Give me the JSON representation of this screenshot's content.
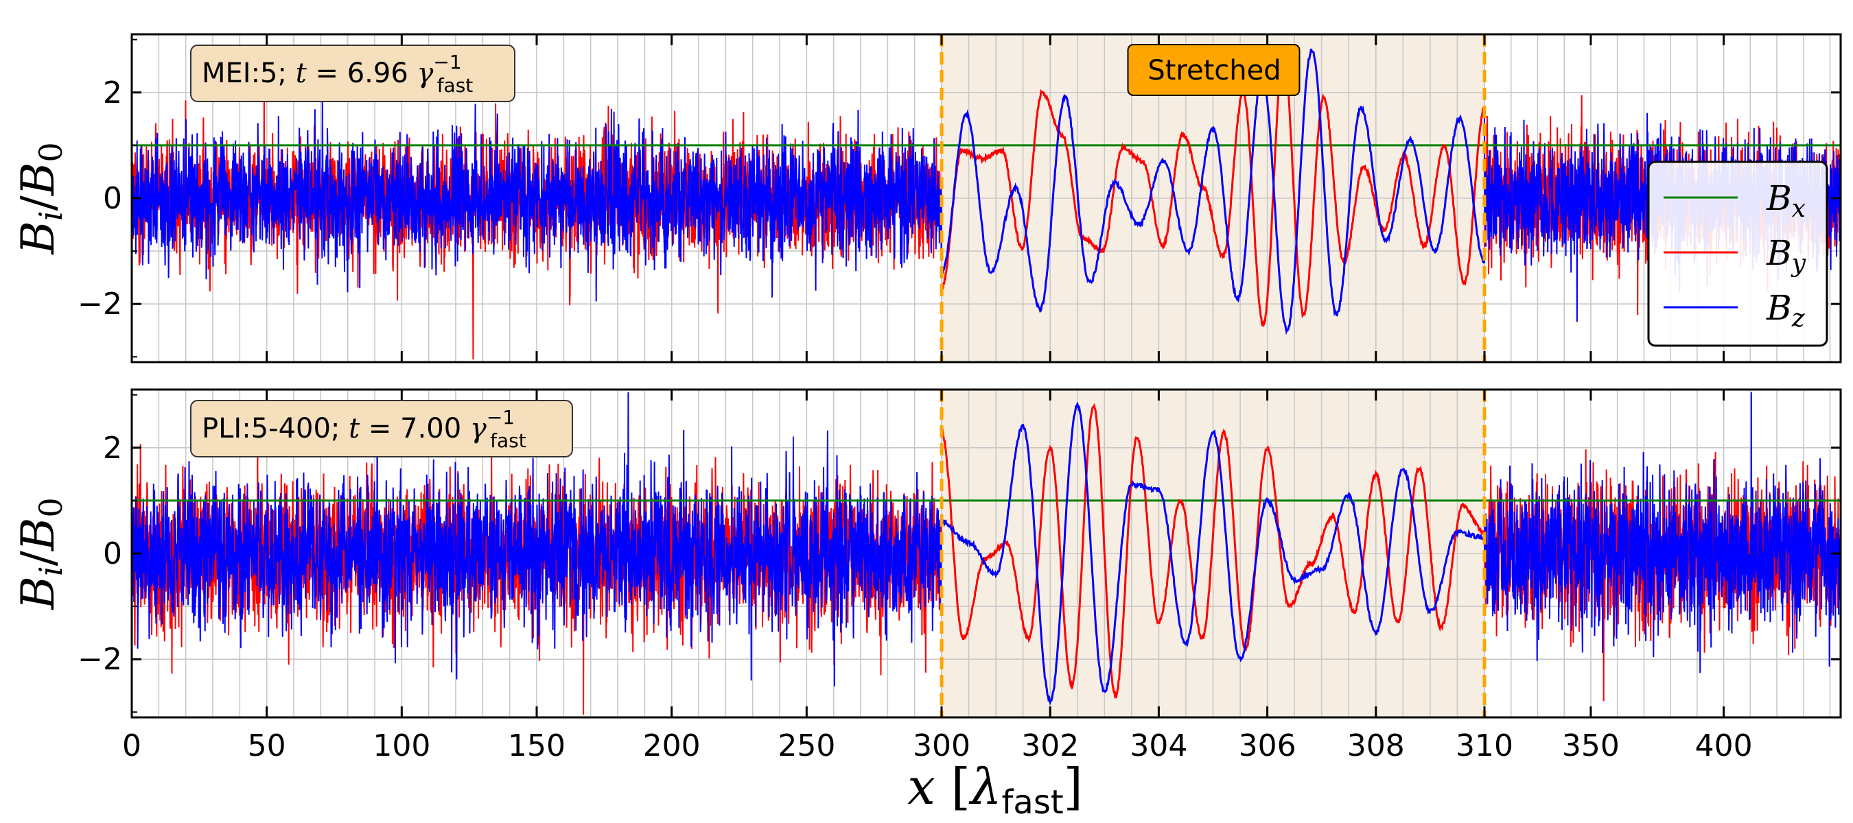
{
  "chart_data": [
    {
      "type": "line",
      "info_box": {
        "prefix": "MEI:5; ",
        "t_symbol": "t",
        "equals_text": " = 6.96 ",
        "gamma_symbol": "γ",
        "gamma_sup": "−1",
        "gamma_sub": "fast"
      },
      "annotation": "Stretched",
      "ylabel": {
        "main": "B",
        "sub1": "i",
        "slash": "/",
        "main2": "B",
        "sub2": "0"
      },
      "ylim": [
        -3.1,
        3.1
      ],
      "yticks": [
        -2,
        0,
        2
      ],
      "ytick_labels": [
        "−2",
        "0",
        "2"
      ],
      "stretched_region_data": [
        300,
        310
      ],
      "legend": [
        {
          "main": "B",
          "sub": "x",
          "color": "#008000"
        },
        {
          "main": "B",
          "sub": "y",
          "color": "#ff0000"
        },
        {
          "main": "B",
          "sub": "z",
          "color": "#0000ff"
        }
      ],
      "series": [
        {
          "name": "Bx",
          "color": "#008000",
          "value": 1.0
        },
        {
          "name": "By",
          "color": "#ff0000",
          "stretched_peaks": [
            -1.7,
            0.9,
            0.75,
            0.9,
            -0.95,
            2.0,
            1.2,
            -0.75,
            -1.0,
            0.95,
            0.7,
            -0.9,
            1.2,
            0.2,
            -1.1,
            2.0,
            -2.4,
            2.7,
            -2.2,
            1.9,
            -1.2,
            0.6,
            -0.6,
            0.8,
            -0.9,
            1.0,
            -1.6,
            1.7
          ]
        },
        {
          "name": "Bz",
          "color": "#0000ff",
          "stretched_peaks": [
            -1.4,
            1.6,
            -1.4,
            0.2,
            -2.1,
            1.9,
            -1.6,
            0.3,
            -0.5,
            0.7,
            -1.0,
            1.3,
            -1.9,
            2.3,
            -2.5,
            2.8,
            -2.2,
            1.7,
            -0.8,
            1.1,
            -1.0,
            1.5,
            -1.2
          ]
        }
      ]
    },
    {
      "type": "line",
      "info_box": {
        "prefix": "PLI:5-400; ",
        "t_symbol": "t",
        "equals_text": " = 7.00 ",
        "gamma_symbol": "γ",
        "gamma_sup": "−1",
        "gamma_sub": "fast"
      },
      "ylabel": {
        "main": "B",
        "sub1": "i",
        "slash": "/",
        "main2": "B",
        "sub2": "0"
      },
      "ylim": [
        -3.1,
        3.1
      ],
      "yticks": [
        -2,
        0,
        2
      ],
      "ytick_labels": [
        "−2",
        "0",
        "2"
      ],
      "stretched_region_data": [
        300,
        310
      ],
      "series": [
        {
          "name": "Bx",
          "color": "#008000",
          "value": 1.0
        },
        {
          "name": "By",
          "color": "#ff0000",
          "stretched_peaks": [
            2.3,
            -1.6,
            -0.1,
            0.2,
            -1.6,
            2.0,
            -2.5,
            2.8,
            -2.7,
            2.2,
            -1.3,
            1.0,
            -1.6,
            2.3,
            -1.8,
            2.0,
            -1.0,
            -0.2,
            0.7,
            -1.1,
            1.5,
            -1.3,
            1.6,
            -1.4,
            0.9,
            0.4
          ]
        },
        {
          "name": "Bz",
          "color": "#0000ff",
          "stretched_peaks": [
            0.6,
            0.2,
            -0.4,
            2.4,
            -2.8,
            2.8,
            -2.6,
            1.3,
            1.2,
            -1.7,
            2.3,
            -2.0,
            1.0,
            -0.5,
            -0.3,
            1.1,
            -1.5,
            1.6,
            -1.1,
            0.4,
            0.3
          ]
        }
      ]
    }
  ],
  "x_axis": {
    "label_main": "x",
    "label_open": " [",
    "label_lambda": "λ",
    "label_sub": "fast",
    "label_close": "]",
    "scale_note": "piecewise: linear 0–300 compressed, 300–310 expanded, 310–444 compressed",
    "ticks": [
      0,
      50,
      100,
      150,
      200,
      250,
      300,
      302,
      304,
      306,
      308,
      310,
      350,
      400
    ],
    "tick_labels": [
      "0",
      "50",
      "100",
      "150",
      "200",
      "250",
      "300",
      "302",
      "304",
      "306",
      "308",
      "310",
      "350",
      "400"
    ],
    "range": [
      0,
      444
    ]
  },
  "colors": {
    "stretch_fill": "#f7eee3",
    "stretch_edge": "#ffa500",
    "info_box_fill": "#f5dfbd",
    "annotation_fill": "#ffa500",
    "grid": "#b0b0b0"
  }
}
